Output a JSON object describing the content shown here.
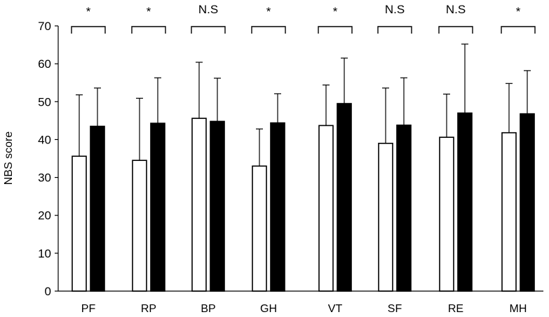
{
  "chart_data": {
    "type": "bar",
    "ylabel": "NBS score",
    "xlabel": "",
    "ylim": [
      0,
      70
    ],
    "yticks": [
      "0",
      "10",
      "20",
      "30",
      "40",
      "50",
      "60",
      "70"
    ],
    "categories": [
      "PF",
      "RP",
      "BP",
      "GH",
      "VT",
      "SF",
      "RE",
      "MH"
    ],
    "series": [
      {
        "fill": "#ffffff",
        "values": [
          35.6,
          34.5,
          45.6,
          33.0,
          43.7,
          39.0,
          40.6,
          41.8
        ],
        "error_plus": [
          16.2,
          16.4,
          14.8,
          9.8,
          10.7,
          14.6,
          11.4,
          13.0
        ]
      },
      {
        "fill": "#000000",
        "values": [
          43.5,
          44.3,
          44.8,
          44.4,
          49.5,
          43.8,
          47.0,
          46.8
        ],
        "error_plus": [
          10.1,
          12.0,
          11.4,
          7.7,
          12.0,
          12.5,
          18.2,
          11.4
        ]
      }
    ],
    "significance": [
      "*",
      "*",
      "N.S",
      "*",
      "*",
      "N.S",
      "N.S",
      "*"
    ],
    "grid": false,
    "legend": "none"
  }
}
